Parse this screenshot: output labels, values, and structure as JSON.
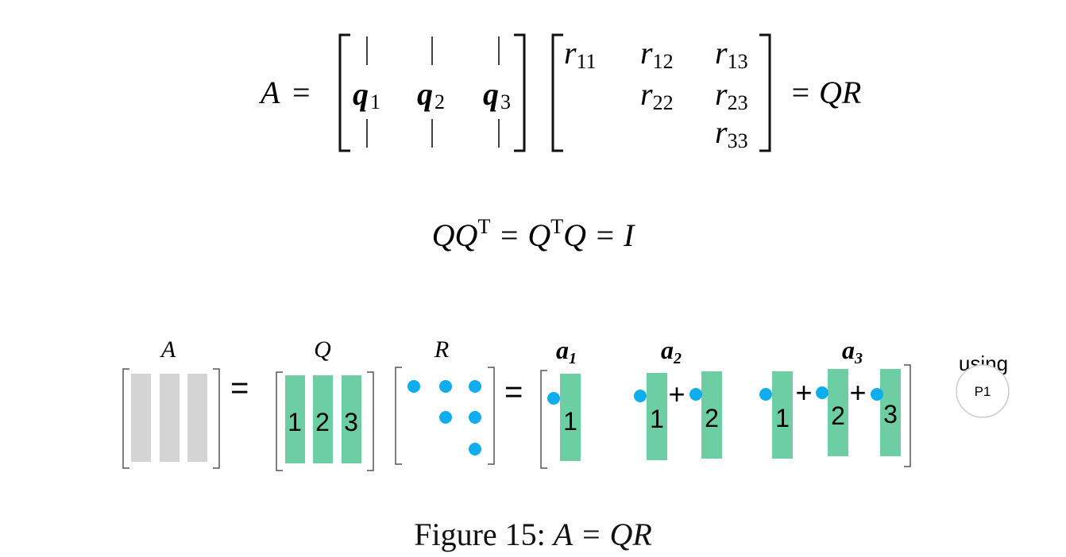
{
  "equation1": {
    "lhs": "A",
    "equals": "=",
    "q_labels": [
      "q",
      "q",
      "q"
    ],
    "q_subscripts": [
      "1",
      "2",
      "3"
    ],
    "r_entries": [
      {
        "name": "r",
        "sub": "11"
      },
      {
        "name": "r",
        "sub": "12"
      },
      {
        "name": "r",
        "sub": "13"
      },
      {
        "name": "r",
        "sub": "22"
      },
      {
        "name": "r",
        "sub": "23"
      },
      {
        "name": "r",
        "sub": "33"
      }
    ],
    "rhs": "= QR"
  },
  "equation2": {
    "part1": "QQ",
    "sup1": "T",
    "part2": " = Q",
    "sup2": "T",
    "part3": "Q = I"
  },
  "diagram": {
    "labels": {
      "A": "A",
      "Q": "Q",
      "R": "R"
    },
    "a_labels": [
      {
        "name": "a",
        "sub": "1"
      },
      {
        "name": "a",
        "sub": "2"
      },
      {
        "name": "a",
        "sub": "3"
      }
    ],
    "equals": "=",
    "plus": "+",
    "q_column_numbers": [
      "1",
      "2",
      "3"
    ],
    "using_text": "using",
    "badge_text": "P1",
    "colors": {
      "gray": "#d4d4d4",
      "green": "#6ccea2",
      "dot": "#10adee",
      "bracket": "#555555"
    }
  },
  "caption": {
    "prefix": "Figure 15:",
    "math": "A = QR"
  }
}
